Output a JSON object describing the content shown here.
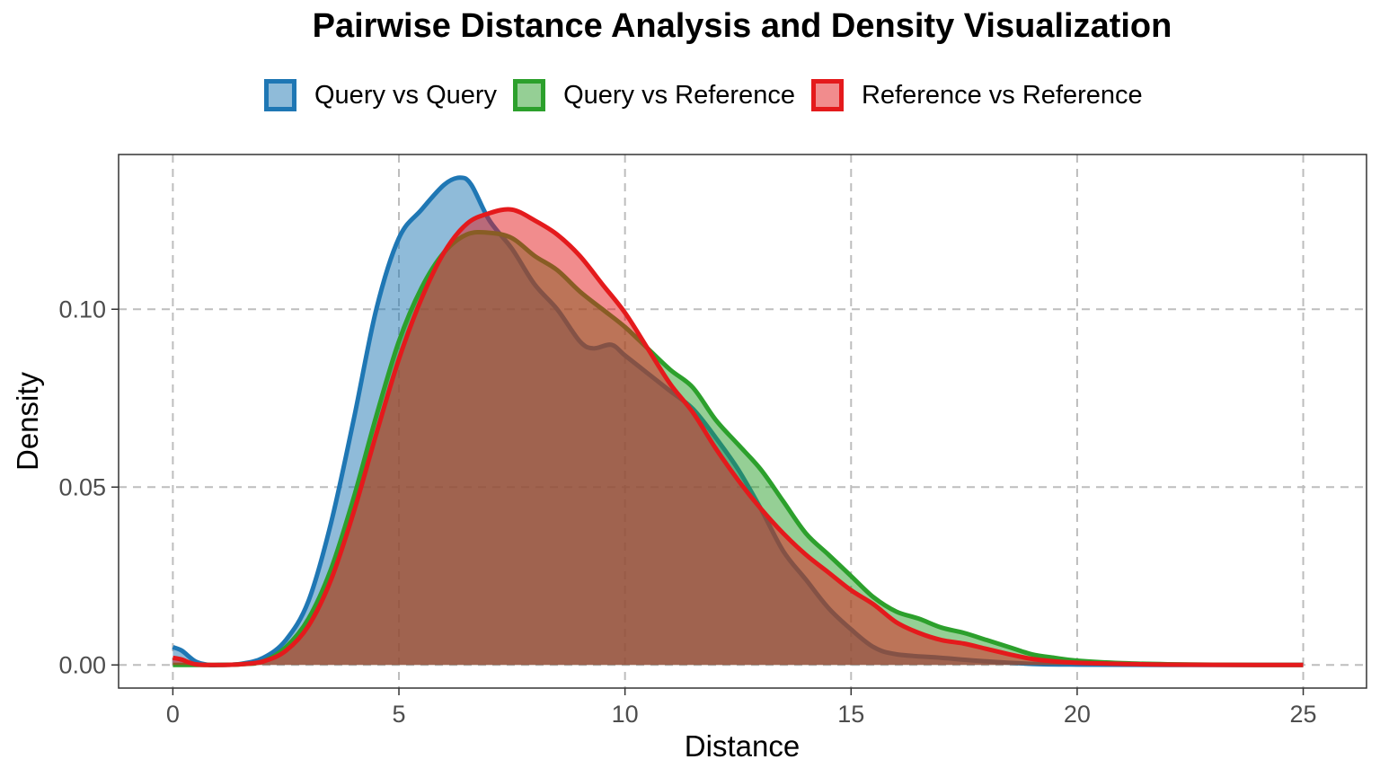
{
  "chart_data": {
    "type": "area",
    "title": "Pairwise Distance Analysis and Density Visualization",
    "xlabel": "Distance",
    "ylabel": "Density",
    "xlim": [
      -1.2,
      26.4
    ],
    "ylim": [
      -0.0065,
      0.1435
    ],
    "x_ticks": [
      0,
      5,
      10,
      15,
      20,
      25
    ],
    "x_tick_labels": [
      "0",
      "5",
      "10",
      "15",
      "20",
      "25"
    ],
    "y_ticks": [
      0.0,
      0.05,
      0.1
    ],
    "y_tick_labels": [
      "0.00",
      "0.05",
      "0.10"
    ],
    "grid": true,
    "legend_position": "top",
    "series": [
      {
        "name": "Query vs Query",
        "line_color": "#1f77b4",
        "fill_color": "#1f77b4",
        "points": [
          [
            0,
            0.005
          ],
          [
            0.2,
            0.004
          ],
          [
            0.5,
            0.001
          ],
          [
            0.8,
            0.0
          ],
          [
            1,
            0.0
          ],
          [
            1.5,
            0.0003
          ],
          [
            2,
            0.002
          ],
          [
            2.5,
            0.007
          ],
          [
            3,
            0.018
          ],
          [
            3.5,
            0.04
          ],
          [
            4,
            0.069
          ],
          [
            4.5,
            0.1
          ],
          [
            5,
            0.12
          ],
          [
            5.5,
            0.128
          ],
          [
            6,
            0.135
          ],
          [
            6.35,
            0.137
          ],
          [
            6.6,
            0.135
          ],
          [
            7,
            0.125
          ],
          [
            7.5,
            0.117
          ],
          [
            8,
            0.107
          ],
          [
            8.5,
            0.1
          ],
          [
            9,
            0.091
          ],
          [
            9.3,
            0.089
          ],
          [
            9.7,
            0.09
          ],
          [
            10,
            0.087
          ],
          [
            10.5,
            0.082
          ],
          [
            11,
            0.077
          ],
          [
            11.5,
            0.072
          ],
          [
            12,
            0.064
          ],
          [
            12.5,
            0.055
          ],
          [
            13,
            0.044
          ],
          [
            13.5,
            0.032
          ],
          [
            14,
            0.024
          ],
          [
            14.5,
            0.016
          ],
          [
            15,
            0.01
          ],
          [
            15.5,
            0.005
          ],
          [
            16,
            0.003
          ],
          [
            17,
            0.002
          ],
          [
            18,
            0.001
          ],
          [
            19,
            0.0003
          ],
          [
            20,
            0.0001
          ],
          [
            22,
            0.0
          ],
          [
            25,
            0.0
          ]
        ]
      },
      {
        "name": "Query vs Reference",
        "line_color": "#2ca02c",
        "fill_color": "#2ca02c",
        "points": [
          [
            0,
            0.0
          ],
          [
            0.5,
            0.0
          ],
          [
            1,
            0.0
          ],
          [
            1.5,
            0.0002
          ],
          [
            2,
            0.001
          ],
          [
            2.5,
            0.005
          ],
          [
            3,
            0.013
          ],
          [
            3.5,
            0.027
          ],
          [
            4,
            0.047
          ],
          [
            4.5,
            0.07
          ],
          [
            5,
            0.091
          ],
          [
            5.5,
            0.106
          ],
          [
            6,
            0.116
          ],
          [
            6.5,
            0.121
          ],
          [
            7,
            0.1215
          ],
          [
            7.5,
            0.12
          ],
          [
            8,
            0.115
          ],
          [
            8.5,
            0.111
          ],
          [
            9,
            0.105
          ],
          [
            9.5,
            0.1
          ],
          [
            10,
            0.095
          ],
          [
            10.5,
            0.089
          ],
          [
            11,
            0.083
          ],
          [
            11.5,
            0.078
          ],
          [
            12,
            0.069
          ],
          [
            12.5,
            0.062
          ],
          [
            13,
            0.055
          ],
          [
            13.5,
            0.046
          ],
          [
            14,
            0.037
          ],
          [
            14.5,
            0.031
          ],
          [
            15,
            0.025
          ],
          [
            15.5,
            0.019
          ],
          [
            16,
            0.015
          ],
          [
            16.5,
            0.013
          ],
          [
            17,
            0.0105
          ],
          [
            17.5,
            0.009
          ],
          [
            18,
            0.007
          ],
          [
            18.5,
            0.005
          ],
          [
            19,
            0.003
          ],
          [
            19.5,
            0.002
          ],
          [
            20,
            0.0012
          ],
          [
            21,
            0.0005
          ],
          [
            22,
            0.0002
          ],
          [
            24,
            0.0
          ],
          [
            25,
            0.0
          ]
        ]
      },
      {
        "name": "Reference vs Reference",
        "line_color": "#e41a1c",
        "fill_color": "#e41a1c",
        "points": [
          [
            0,
            0.002
          ],
          [
            0.2,
            0.0015
          ],
          [
            0.5,
            0.0002
          ],
          [
            1,
            0.0
          ],
          [
            1.5,
            0.0002
          ],
          [
            2,
            0.001
          ],
          [
            2.5,
            0.004
          ],
          [
            3,
            0.011
          ],
          [
            3.5,
            0.024
          ],
          [
            4,
            0.043
          ],
          [
            4.5,
            0.065
          ],
          [
            5,
            0.086
          ],
          [
            5.5,
            0.103
          ],
          [
            6,
            0.116
          ],
          [
            6.5,
            0.124
          ],
          [
            7,
            0.127
          ],
          [
            7.5,
            0.128
          ],
          [
            8,
            0.125
          ],
          [
            8.5,
            0.121
          ],
          [
            9,
            0.115
          ],
          [
            9.5,
            0.107
          ],
          [
            10,
            0.099
          ],
          [
            10.5,
            0.089
          ],
          [
            11,
            0.079
          ],
          [
            11.5,
            0.071
          ],
          [
            12,
            0.061
          ],
          [
            12.5,
            0.052
          ],
          [
            13,
            0.044
          ],
          [
            13.5,
            0.037
          ],
          [
            14,
            0.031
          ],
          [
            14.5,
            0.026
          ],
          [
            15,
            0.021
          ],
          [
            15.5,
            0.017
          ],
          [
            16,
            0.012
          ],
          [
            16.5,
            0.009
          ],
          [
            17,
            0.007
          ],
          [
            17.5,
            0.006
          ],
          [
            18,
            0.0045
          ],
          [
            18.5,
            0.003
          ],
          [
            19,
            0.0017
          ],
          [
            19.5,
            0.001
          ],
          [
            20,
            0.0006
          ],
          [
            21,
            0.0003
          ],
          [
            22,
            0.0001
          ],
          [
            24,
            0.0
          ],
          [
            25,
            0.0
          ]
        ]
      }
    ]
  }
}
